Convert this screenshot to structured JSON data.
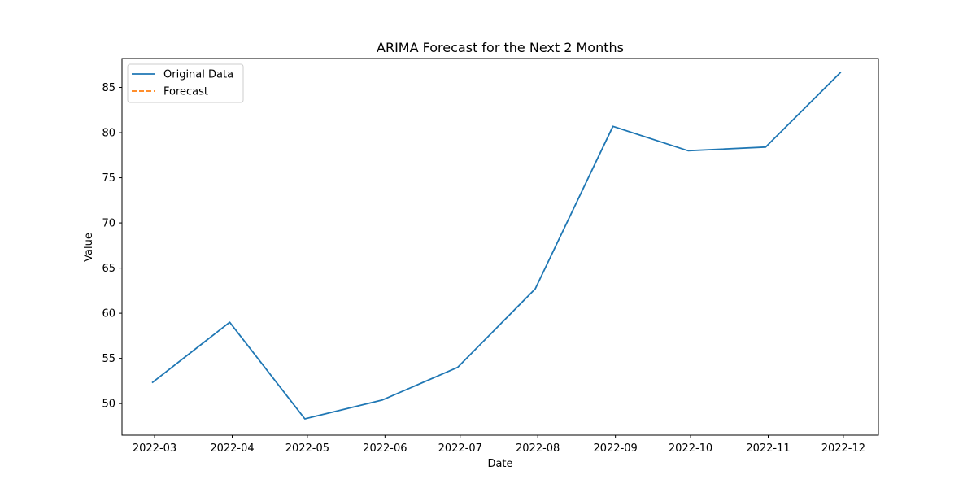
{
  "chart_data": {
    "type": "line",
    "title": "ARIMA Forecast for the Next 2 Months",
    "xlabel": "Date",
    "ylabel": "Value",
    "ylim": [
      46.5,
      88.2
    ],
    "xlim": [
      "2022-02-16",
      "2022-12-15"
    ],
    "grid": false,
    "legend_position": "top-left",
    "x_ticks": [
      "2022-03",
      "2022-04",
      "2022-05",
      "2022-06",
      "2022-07",
      "2022-08",
      "2022-09",
      "2022-10",
      "2022-11",
      "2022-12"
    ],
    "y_ticks": [
      50,
      55,
      60,
      65,
      70,
      75,
      80,
      85
    ],
    "series": [
      {
        "name": "Original Data",
        "color": "#1f77b4",
        "style": "solid",
        "x": [
          "2022-02-28",
          "2022-03-31",
          "2022-04-30",
          "2022-05-31",
          "2022-06-30",
          "2022-07-31",
          "2022-08-31",
          "2022-09-30",
          "2022-10-31",
          "2022-11-30"
        ],
        "values": [
          52.3,
          59.0,
          48.3,
          50.4,
          54.0,
          62.7,
          80.7,
          78.0,
          78.4,
          86.7
        ]
      },
      {
        "name": "Forecast",
        "color": "#ff7f0e",
        "style": "dashed",
        "x": [],
        "values": []
      }
    ]
  }
}
